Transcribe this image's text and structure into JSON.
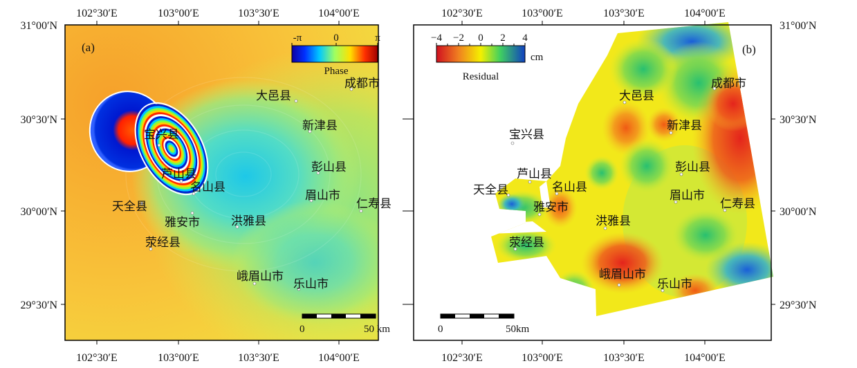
{
  "panels": [
    {
      "label": "(a)",
      "top_ticks": [
        "102°30′E",
        "103°00′E",
        "103°30′E",
        "104°00′E"
      ],
      "bottom_ticks": [
        "102°30′E",
        "103°00′E",
        "103°30′E",
        "104°00′E"
      ],
      "left_ticks": [
        "31°00′N",
        "30°30′N",
        "30°00′N",
        "29°30′N"
      ],
      "legend": {
        "min": "-π",
        "mid": "0",
        "max": "π",
        "title": "Phase"
      },
      "scalebar": {
        "start": "0",
        "end": "50 km"
      },
      "cities": [
        "大邑县",
        "成都市",
        "新津县",
        "宝兴县",
        "芦山县",
        "名山县",
        "彭山县",
        "眉山市",
        "仁寿县",
        "天全县",
        "雅安市",
        "洪雅县",
        "荥经县",
        "峨眉山市",
        "乐山市"
      ]
    },
    {
      "label": "(b)",
      "top_ticks": [
        "102°30′E",
        "103°00′E",
        "103°30′E",
        "104°00′E"
      ],
      "bottom_ticks": [
        "102°30′E",
        "103°00′E",
        "103°30′E",
        "104°00′E"
      ],
      "right_ticks": [
        "31°00′N",
        "30°30′N",
        "30°00′N",
        "29°30′N"
      ],
      "legend": {
        "ticks": [
          "−4",
          "−2",
          "0",
          "2",
          "4"
        ],
        "unit": "cm",
        "title": "Residual"
      },
      "scalebar": {
        "start": "0",
        "end": "50km"
      },
      "cities": [
        "大邑县",
        "成都市",
        "新津县",
        "宝兴县",
        "芦山县",
        "名山县",
        "彭山县",
        "眉山市",
        "仁寿县",
        "天全县",
        "雅安市",
        "洪雅县",
        "荥经县",
        "峨眉山市",
        "乐山市"
      ]
    }
  ],
  "colors": {
    "phase_background": "#f7a52a",
    "phase_low": "#0000cc",
    "phase_high": "#ff0000",
    "residual_red": "#e8281e",
    "residual_yellow": "#f4f000",
    "residual_blue": "#1a5fd8"
  }
}
